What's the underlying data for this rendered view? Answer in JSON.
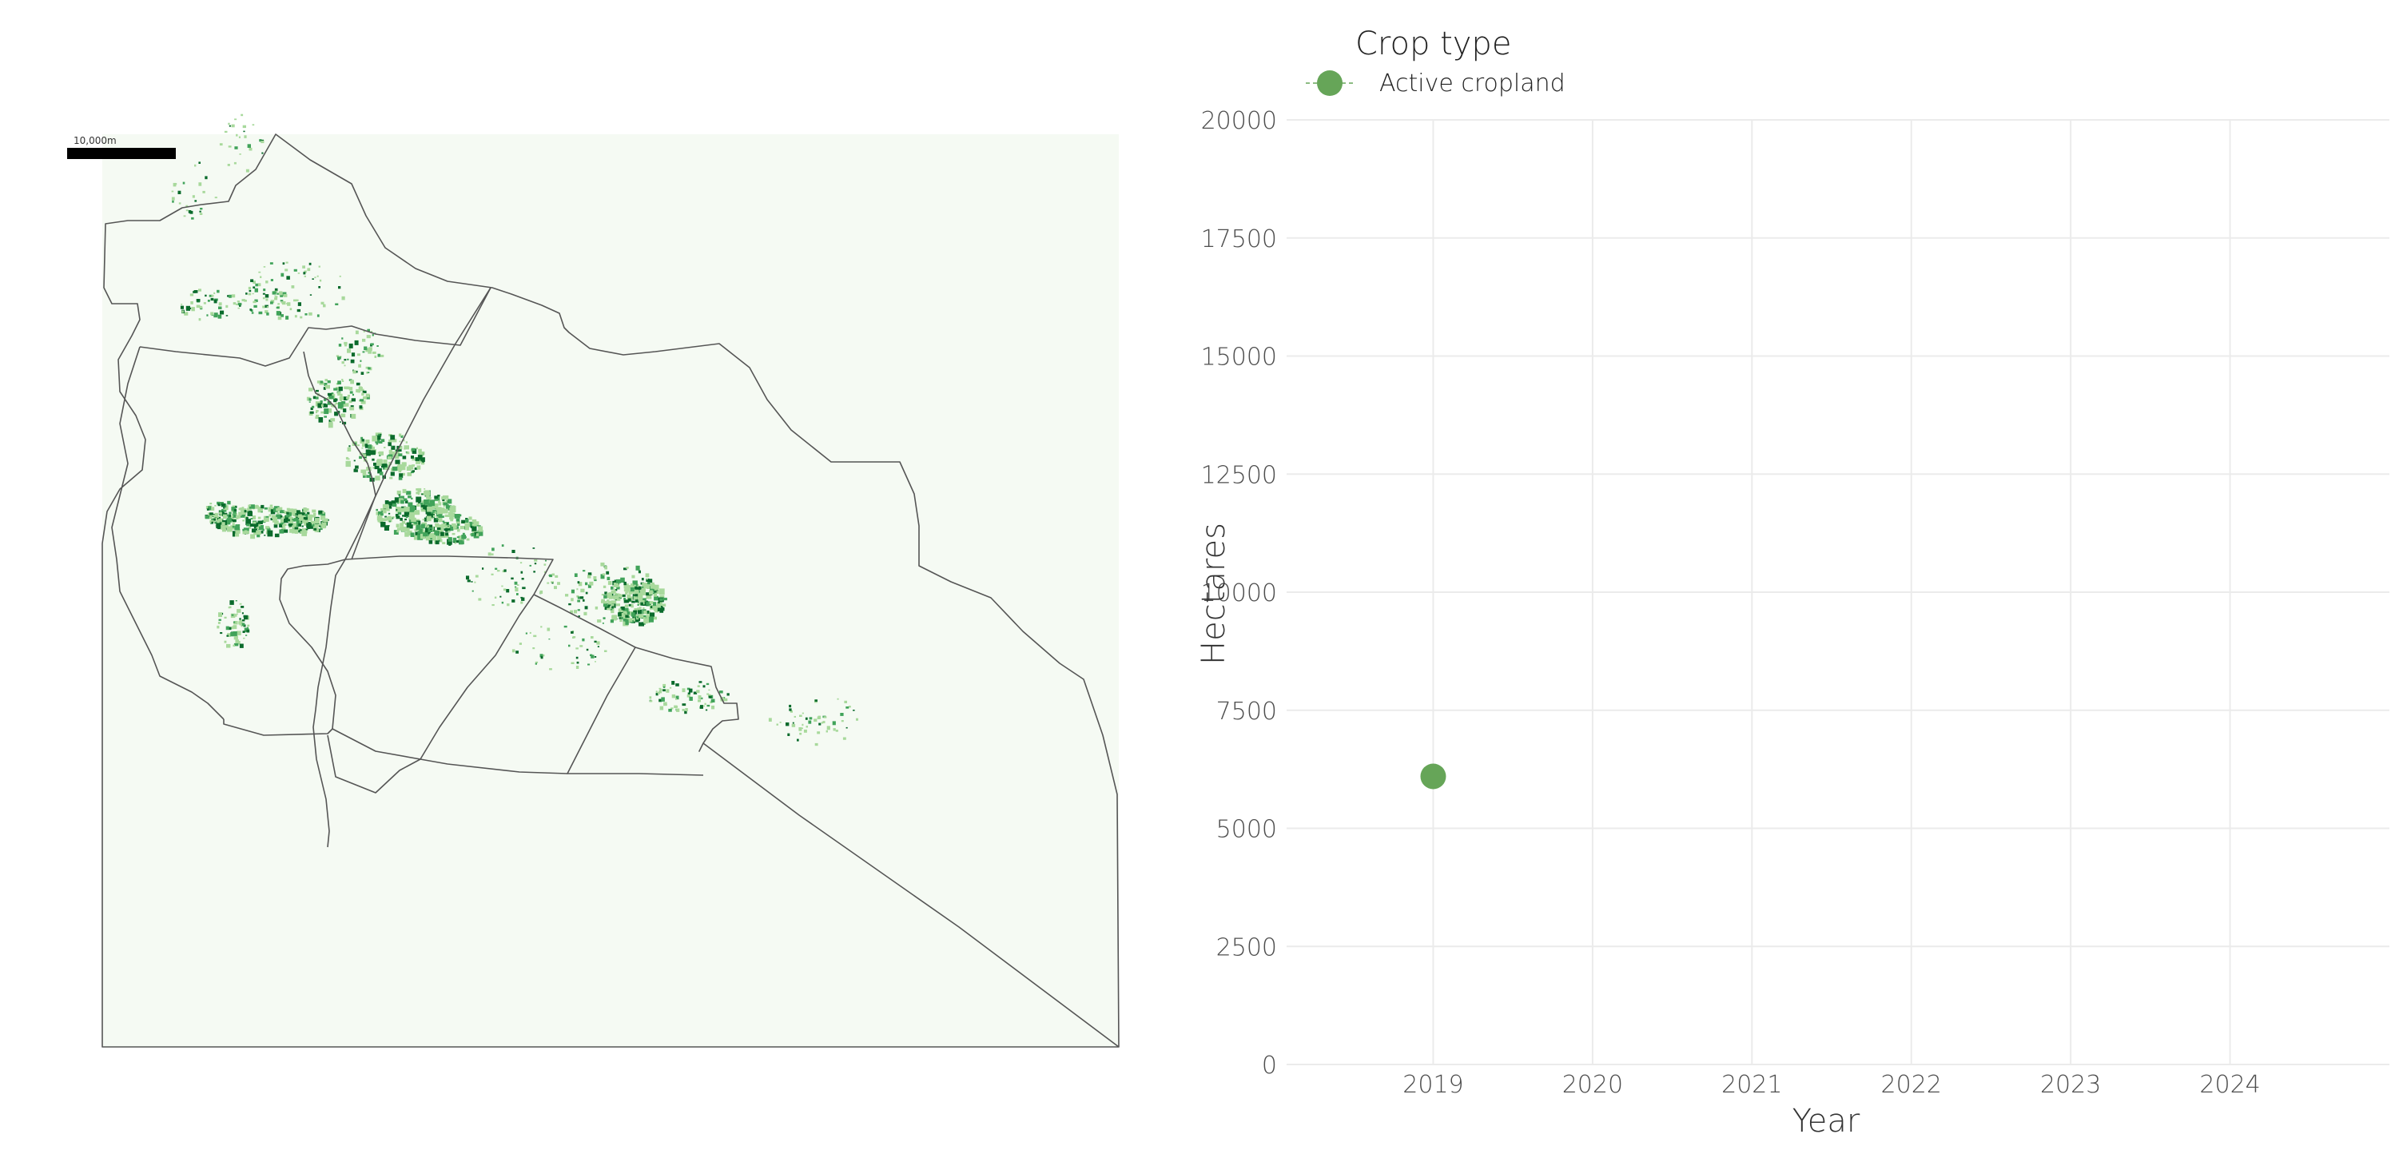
{
  "map": {
    "scale_bar_label": "10,000m",
    "colors": {
      "background": "#f5faf3",
      "crop_light": "#a8d99c",
      "crop_mid": "#41a35a",
      "crop_dark": "#0b6b2c",
      "boundary": "#555555"
    }
  },
  "chart_data": {
    "type": "scatter",
    "legend": {
      "title": "Crop type",
      "entries": [
        "Active cropland"
      ],
      "position": "top-left"
    },
    "series": [
      {
        "name": "Active cropland",
        "color": "#66a558",
        "points": [
          {
            "x": 2019,
            "y": 6100
          }
        ]
      }
    ],
    "x": [
      2019,
      2020,
      2021,
      2022,
      2023,
      2024
    ],
    "x_tick_labels": [
      "2019",
      "2020",
      "2021",
      "2022",
      "2023",
      "2024"
    ],
    "y_tick_values": [
      0,
      2500,
      5000,
      7500,
      10000,
      12500,
      15000,
      17500,
      20000
    ],
    "y_tick_labels": [
      "0",
      "2500",
      "5000",
      "7500",
      "10000",
      "12500",
      "15000",
      "17500",
      "20000"
    ],
    "xlim": [
      2018.08,
      2025.0
    ],
    "ylim": [
      0,
      20000
    ],
    "xlabel": "Year",
    "ylabel": "Hectares",
    "grid": true
  }
}
